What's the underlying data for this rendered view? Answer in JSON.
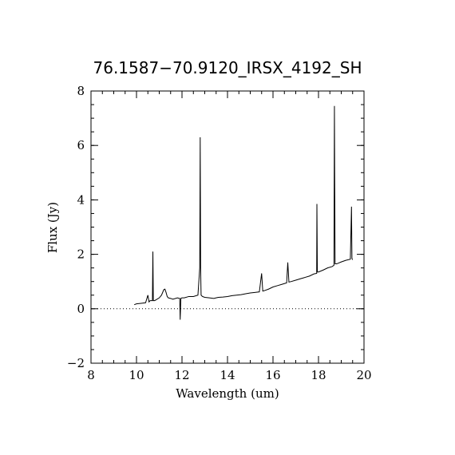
{
  "chart_data": {
    "type": "line",
    "title": "76.1587−70.9120_IRSX_4192_SH",
    "xlabel": "Wavelength (um)",
    "ylabel": "Flux (Jy)",
    "xlim": [
      8,
      20
    ],
    "ylim": [
      -2,
      8
    ],
    "xticks": [
      "8",
      "10",
      "12",
      "14",
      "16",
      "18",
      "20"
    ],
    "yticks": [
      "−2",
      "0",
      "2",
      "4",
      "6",
      "8"
    ],
    "x_minor_step": 0.5,
    "y_minor_step": 0.5,
    "zero_line": {
      "style": "dotted",
      "y": 0
    },
    "grid": false,
    "legend": "none",
    "line_color": "#000000",
    "series": [
      {
        "x": [
          9.9,
          10.0,
          10.2,
          10.4,
          10.5,
          10.55,
          10.6,
          10.7,
          10.72,
          10.74,
          10.8,
          11.0,
          11.1,
          11.2,
          11.25,
          11.3,
          11.35,
          11.4,
          11.5,
          11.6,
          11.8,
          11.9,
          11.92,
          11.95,
          12.0,
          12.1,
          12.3,
          12.5,
          12.7,
          12.78,
          12.8,
          12.82,
          12.84,
          12.9,
          13.0,
          13.2,
          13.4,
          13.5,
          13.6,
          13.8,
          14.0,
          14.2,
          14.4,
          14.6,
          14.8,
          15.0,
          15.2,
          15.4,
          15.5,
          15.55,
          15.6,
          15.8,
          16.0,
          16.2,
          16.4,
          16.6,
          16.65,
          16.7,
          16.8,
          17.0,
          17.2,
          17.4,
          17.6,
          17.8,
          17.92,
          17.93,
          17.95,
          18.0,
          18.2,
          18.4,
          18.6,
          18.68,
          18.7,
          18.71,
          18.73,
          18.75,
          18.8,
          19.0,
          19.2,
          19.4,
          19.45,
          19.47,
          19.5
        ],
        "y": [
          0.15,
          0.18,
          0.2,
          0.22,
          0.5,
          0.25,
          0.3,
          0.3,
          2.1,
          0.3,
          0.3,
          0.4,
          0.5,
          0.7,
          0.72,
          0.6,
          0.45,
          0.4,
          0.38,
          0.35,
          0.4,
          0.38,
          -0.4,
          0.38,
          0.4,
          0.4,
          0.45,
          0.45,
          0.5,
          1.5,
          6.3,
          1.4,
          0.5,
          0.45,
          0.42,
          0.4,
          0.38,
          0.4,
          0.42,
          0.43,
          0.45,
          0.48,
          0.5,
          0.52,
          0.55,
          0.58,
          0.6,
          0.62,
          1.3,
          0.65,
          0.66,
          0.72,
          0.8,
          0.85,
          0.9,
          0.95,
          1.7,
          0.98,
          1.0,
          1.05,
          1.1,
          1.15,
          1.2,
          1.28,
          1.3,
          3.85,
          1.35,
          1.35,
          1.42,
          1.5,
          1.55,
          1.6,
          7.45,
          5.1,
          1.65,
          1.65,
          1.65,
          1.72,
          1.78,
          1.82,
          3.75,
          1.85,
          1.8
        ]
      }
    ]
  }
}
